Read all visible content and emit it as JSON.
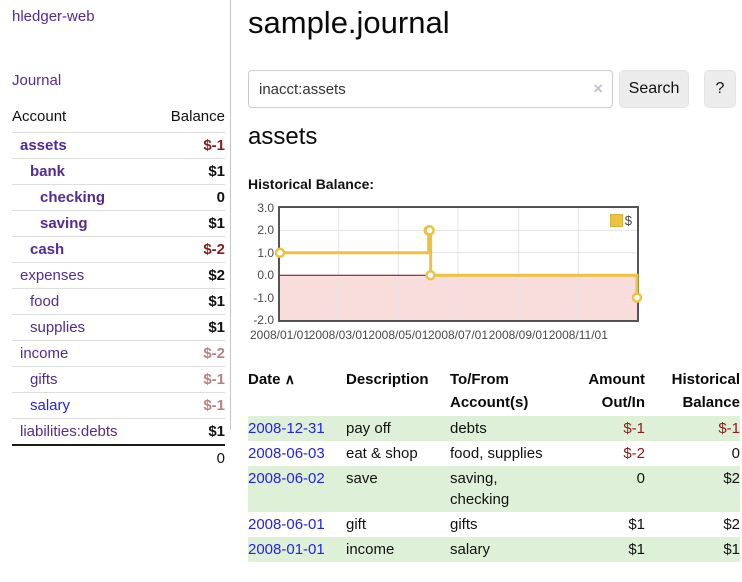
{
  "sidebar": {
    "app_title": "hledger-web",
    "journal_link": "Journal",
    "accounts": {
      "header_account": "Account",
      "header_balance": "Balance",
      "rows": [
        {
          "name": "assets",
          "balance": "$-1",
          "depth": 0,
          "bold": true,
          "link": "purple",
          "balance_style": "neg"
        },
        {
          "name": "bank",
          "balance": "$1",
          "depth": 1,
          "bold": true,
          "link": "purple",
          "balance_style": "plain"
        },
        {
          "name": "checking",
          "balance": "0",
          "depth": 2,
          "bold": true,
          "link": "purple",
          "balance_style": "plain"
        },
        {
          "name": "saving",
          "balance": "$1",
          "depth": 2,
          "bold": true,
          "link": "purple",
          "balance_style": "plain"
        },
        {
          "name": "cash",
          "balance": "$-2",
          "depth": 1,
          "bold": true,
          "link": "purple",
          "balance_style": "neg"
        },
        {
          "name": "expenses",
          "balance": "$2",
          "depth": 0,
          "bold": false,
          "link": "purple",
          "balance_style": "plain"
        },
        {
          "name": "food",
          "balance": "$1",
          "depth": 1,
          "bold": false,
          "link": "purple",
          "balance_style": "plain"
        },
        {
          "name": "supplies",
          "balance": "$1",
          "depth": 1,
          "bold": false,
          "link": "purple",
          "balance_style": "plain"
        },
        {
          "name": "income",
          "balance": "$-2",
          "depth": 0,
          "bold": false,
          "link": "purple",
          "balance_style": "muted"
        },
        {
          "name": "gifts",
          "balance": "$-1",
          "depth": 1,
          "bold": false,
          "link": "purple",
          "balance_style": "muted"
        },
        {
          "name": "salary",
          "balance": "$-1",
          "depth": 1,
          "bold": false,
          "link": "blue",
          "balance_style": "muted"
        },
        {
          "name": "liabilities:debts",
          "balance": "$1",
          "depth": 0,
          "bold": false,
          "link": "purple",
          "balance_style": "plain"
        }
      ],
      "total": "0"
    }
  },
  "main": {
    "title": "sample.journal",
    "search": {
      "value": "inacct:assets",
      "clear_icon": "×",
      "search_label": "Search",
      "help_label": "?"
    },
    "account_heading": "assets",
    "chart_label": "Historical Balance:"
  },
  "chart_data": {
    "type": "line",
    "title": "Historical Balance",
    "xlabel": "",
    "ylabel": "",
    "series": [
      {
        "name": "$",
        "color": "#edc240",
        "style": "step",
        "points": [
          [
            "2008/01/01",
            1
          ],
          [
            "2008/06/01",
            2
          ],
          [
            "2008/06/02",
            2
          ],
          [
            "2008/06/03",
            0
          ],
          [
            "2008/12/31",
            -1
          ]
        ]
      }
    ],
    "x_range": [
      "2008/01/01",
      "2008/12/31"
    ],
    "ylim": [
      -2,
      3
    ],
    "x_ticks": [
      "2008/01/01",
      "2008/03/01",
      "2008/05/01",
      "2008/07/01",
      "2008/09/01",
      "2008/11/01"
    ],
    "y_ticks": [
      3,
      2,
      1,
      0,
      -1,
      -2
    ],
    "grid": true,
    "legend": {
      "label": "$",
      "position": "top-right",
      "swatch_color": "#edc240"
    },
    "negative_region_fill": "#f9dcdc",
    "zero_line_color": "#8b0000",
    "frame_color": "#545454"
  },
  "register": {
    "headers": [
      "Date",
      "Description",
      "To/From Account(s)",
      "Amount Out/In",
      "Historical Balance"
    ],
    "sort_icon": "∧",
    "rows": [
      {
        "date": "2008-12-31",
        "description": "pay off",
        "accounts": "debts",
        "amount": "$-1",
        "amount_negative": true,
        "balance": "$-1",
        "balance_negative": true
      },
      {
        "date": "2008-06-03",
        "description": "eat & shop",
        "accounts": "food, supplies",
        "amount": "$-2",
        "amount_negative": true,
        "balance": "0",
        "balance_negative": false
      },
      {
        "date": "2008-06-02",
        "description": "save",
        "accounts": "saving, checking",
        "amount": "0",
        "amount_negative": false,
        "balance": "$2",
        "balance_negative": false
      },
      {
        "date": "2008-06-01",
        "description": "gift",
        "accounts": "gifts",
        "amount": "$1",
        "amount_negative": false,
        "balance": "$2",
        "balance_negative": false
      },
      {
        "date": "2008-01-01",
        "description": "income",
        "accounts": "salary",
        "amount": "$1",
        "amount_negative": false,
        "balance": "$1",
        "balance_negative": false
      }
    ]
  },
  "colors": {
    "link_purple": "#542a95",
    "link_blue": "#2222ee",
    "negative": "#8b1a1a",
    "muted_negative": "#bd7f7f",
    "row_green": "#dff0d8",
    "series_yellow": "#edc240"
  }
}
